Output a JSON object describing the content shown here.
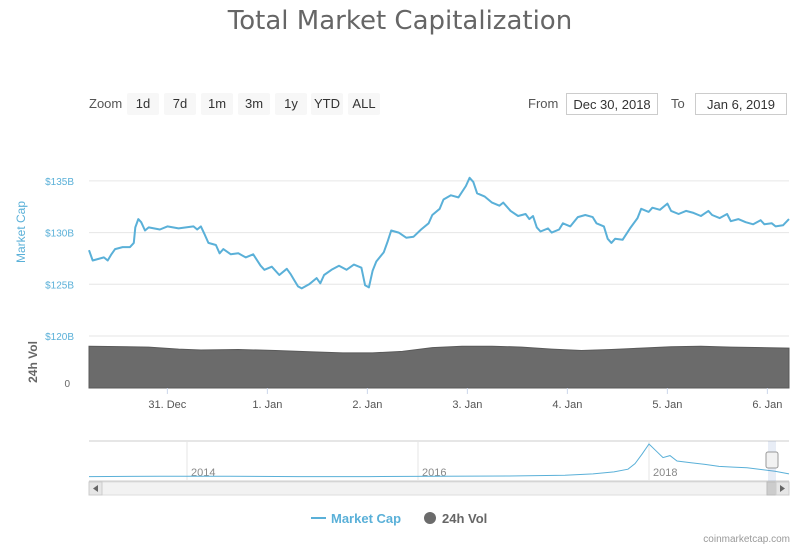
{
  "title": "Total Market Capitalization",
  "zoom": {
    "label": "Zoom",
    "buttons": [
      "1d",
      "7d",
      "1m",
      "3m",
      "1y",
      "YTD",
      "ALL"
    ]
  },
  "range": {
    "from_label": "From",
    "from_value": "Dec 30, 2018",
    "to_label": "To",
    "to_value": "Jan 6, 2019"
  },
  "credit": "coinmarketcap.com",
  "colors": {
    "market_cap": "#5ab0d8",
    "volume": "#6b6b6b",
    "grid": "#e6e6e6",
    "axis_text_cap": "#5ab0d8"
  },
  "chart_data": {
    "type": "line",
    "title": "Total Market Capitalization",
    "x_range": [
      "2018-12-30",
      "2019-01-06"
    ],
    "x_ticks": [
      {
        "t": 1.35,
        "label": "31. Dec"
      },
      {
        "t": 2.35,
        "label": "1. Jan"
      },
      {
        "t": 3.35,
        "label": "2. Jan"
      },
      {
        "t": 4.35,
        "label": "3. Jan"
      },
      {
        "t": 5.35,
        "label": "4. Jan"
      },
      {
        "t": 6.35,
        "label": "5. Jan"
      },
      {
        "t": 7.35,
        "label": "6. Jan"
      }
    ],
    "t_max": 7.4,
    "market_cap": {
      "name": "Market Cap",
      "ylabel": "Market Cap",
      "unit": "B USD",
      "ylim": [
        120,
        137.5
      ],
      "ticks": [
        {
          "v": 135,
          "label": "$135B"
        },
        {
          "v": 130,
          "label": "$130B"
        },
        {
          "v": 125,
          "label": "$125B"
        },
        {
          "v": 120,
          "label": "$120B"
        }
      ],
      "points": [
        [
          0.0,
          128.3
        ],
        [
          0.05,
          127.3
        ],
        [
          0.2,
          127.6
        ],
        [
          0.25,
          127.3
        ],
        [
          0.3,
          127.9
        ],
        [
          0.35,
          128.4
        ],
        [
          0.45,
          128.6
        ],
        [
          0.55,
          128.6
        ],
        [
          0.6,
          129.0
        ],
        [
          0.62,
          130.5
        ],
        [
          0.66,
          131.3
        ],
        [
          0.7,
          131.0
        ],
        [
          0.75,
          130.2
        ],
        [
          0.8,
          130.5
        ],
        [
          0.95,
          130.3
        ],
        [
          1.05,
          130.6
        ],
        [
          1.2,
          130.4
        ],
        [
          1.3,
          130.5
        ],
        [
          1.4,
          130.6
        ],
        [
          1.45,
          130.3
        ],
        [
          1.5,
          130.6
        ],
        [
          1.55,
          129.8
        ],
        [
          1.6,
          129.0
        ],
        [
          1.7,
          128.8
        ],
        [
          1.75,
          128.0
        ],
        [
          1.8,
          128.4
        ],
        [
          1.9,
          127.9
        ],
        [
          2.0,
          128.0
        ],
        [
          2.1,
          127.6
        ],
        [
          2.2,
          127.9
        ],
        [
          2.3,
          126.8
        ],
        [
          2.35,
          126.4
        ],
        [
          2.45,
          126.7
        ],
        [
          2.55,
          125.9
        ],
        [
          2.65,
          126.5
        ],
        [
          2.7,
          126.0
        ],
        [
          2.75,
          125.4
        ],
        [
          2.8,
          124.8
        ],
        [
          2.85,
          124.6
        ],
        [
          2.95,
          125.0
        ],
        [
          3.05,
          125.6
        ],
        [
          3.1,
          125.1
        ],
        [
          3.15,
          125.9
        ],
        [
          3.25,
          126.4
        ],
        [
          3.35,
          126.8
        ],
        [
          3.45,
          126.4
        ],
        [
          3.55,
          126.9
        ],
        [
          3.65,
          126.6
        ],
        [
          3.7,
          124.9
        ],
        [
          3.75,
          124.7
        ],
        [
          3.8,
          126.3
        ],
        [
          3.85,
          127.2
        ],
        [
          3.95,
          128.1
        ],
        [
          4.0,
          129.1
        ],
        [
          4.05,
          130.2
        ],
        [
          4.15,
          130.0
        ],
        [
          4.25,
          129.5
        ],
        [
          4.35,
          129.6
        ],
        [
          4.45,
          130.3
        ],
        [
          4.55,
          130.9
        ],
        [
          4.6,
          131.7
        ],
        [
          4.7,
          132.3
        ],
        [
          4.75,
          133.2
        ],
        [
          4.85,
          133.6
        ],
        [
          4.95,
          133.4
        ],
        [
          5.05,
          134.5
        ],
        [
          5.1,
          135.3
        ],
        [
          5.15,
          134.9
        ],
        [
          5.2,
          133.8
        ],
        [
          5.3,
          133.5
        ],
        [
          5.4,
          132.9
        ],
        [
          5.5,
          132.6
        ],
        [
          5.55,
          132.9
        ],
        [
          5.65,
          132.1
        ],
        [
          5.75,
          131.6
        ],
        [
          5.85,
          131.8
        ],
        [
          5.9,
          131.3
        ],
        [
          5.95,
          131.6
        ],
        [
          6.0,
          130.5
        ],
        [
          6.05,
          130.1
        ],
        [
          6.15,
          130.4
        ],
        [
          6.2,
          130.0
        ],
        [
          6.3,
          130.3
        ],
        [
          6.35,
          130.9
        ],
        [
          6.45,
          130.6
        ],
        [
          6.55,
          131.5
        ],
        [
          6.65,
          131.7
        ],
        [
          6.75,
          131.5
        ],
        [
          6.8,
          130.9
        ],
        [
          6.9,
          130.6
        ],
        [
          6.95,
          129.4
        ],
        [
          7.0,
          129.0
        ],
        [
          7.05,
          129.4
        ],
        [
          7.15,
          129.3
        ],
        [
          7.25,
          130.4
        ],
        [
          7.35,
          131.4
        ],
        [
          7.4,
          132.3
        ],
        [
          7.5,
          132.0
        ],
        [
          7.55,
          132.4
        ],
        [
          7.65,
          132.2
        ],
        [
          7.75,
          132.8
        ],
        [
          7.8,
          132.1
        ],
        [
          7.9,
          131.8
        ],
        [
          8.0,
          132.1
        ],
        [
          8.1,
          131.9
        ],
        [
          8.2,
          131.6
        ],
        [
          8.3,
          132.1
        ],
        [
          8.35,
          131.7
        ],
        [
          8.45,
          131.4
        ],
        [
          8.55,
          131.8
        ],
        [
          8.6,
          131.1
        ],
        [
          8.7,
          131.3
        ],
        [
          8.8,
          131.0
        ],
        [
          8.9,
          130.8
        ],
        [
          9.0,
          131.2
        ],
        [
          9.05,
          130.8
        ],
        [
          9.15,
          130.9
        ],
        [
          9.2,
          130.6
        ],
        [
          9.3,
          130.7
        ],
        [
          9.38,
          131.3
        ]
      ]
    },
    "volume": {
      "name": "24h Vol",
      "ylabel": "24h Vol",
      "ticks": [
        {
          "v": 0,
          "label": "0"
        }
      ],
      "relative_levels": [
        [
          0.0,
          0.88
        ],
        [
          0.8,
          0.86
        ],
        [
          1.2,
          0.82
        ],
        [
          1.5,
          0.8
        ],
        [
          2.0,
          0.81
        ],
        [
          2.5,
          0.79
        ],
        [
          3.0,
          0.76
        ],
        [
          3.4,
          0.74
        ],
        [
          3.8,
          0.74
        ],
        [
          4.2,
          0.77
        ],
        [
          4.6,
          0.85
        ],
        [
          5.0,
          0.88
        ],
        [
          5.4,
          0.88
        ],
        [
          5.8,
          0.86
        ],
        [
          6.2,
          0.82
        ],
        [
          6.6,
          0.79
        ],
        [
          7.0,
          0.81
        ],
        [
          7.4,
          0.84
        ],
        [
          7.8,
          0.87
        ],
        [
          8.2,
          0.88
        ],
        [
          8.6,
          0.86
        ],
        [
          9.38,
          0.84
        ]
      ]
    },
    "navigator": {
      "labels": [
        {
          "x": 0.14,
          "label": "2014"
        },
        {
          "x": 0.47,
          "label": "2016"
        },
        {
          "x": 0.8,
          "label": "2018"
        }
      ],
      "profile": [
        [
          0.0,
          0.04
        ],
        [
          0.1,
          0.05
        ],
        [
          0.2,
          0.05
        ],
        [
          0.3,
          0.04
        ],
        [
          0.4,
          0.04
        ],
        [
          0.5,
          0.05
        ],
        [
          0.6,
          0.06
        ],
        [
          0.68,
          0.08
        ],
        [
          0.72,
          0.12
        ],
        [
          0.75,
          0.18
        ],
        [
          0.77,
          0.26
        ],
        [
          0.78,
          0.42
        ],
        [
          0.79,
          0.7
        ],
        [
          0.8,
          1.0
        ],
        [
          0.81,
          0.8
        ],
        [
          0.82,
          0.6
        ],
        [
          0.83,
          0.66
        ],
        [
          0.84,
          0.5
        ],
        [
          0.86,
          0.45
        ],
        [
          0.88,
          0.4
        ],
        [
          0.9,
          0.34
        ],
        [
          0.92,
          0.32
        ],
        [
          0.94,
          0.3
        ],
        [
          0.96,
          0.25
        ],
        [
          0.98,
          0.2
        ],
        [
          1.0,
          0.12
        ]
      ]
    },
    "legend": [
      {
        "label": "Market Cap",
        "marker": "line"
      },
      {
        "label": "24h Vol",
        "marker": "circle"
      }
    ]
  }
}
